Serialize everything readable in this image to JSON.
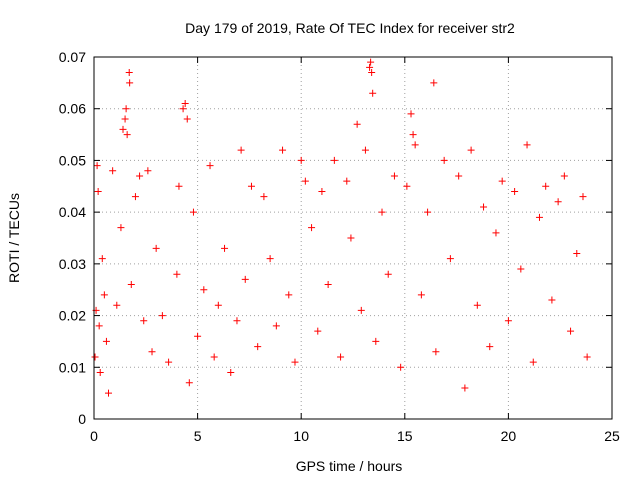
{
  "chart_data": {
    "type": "scatter",
    "title": "Day 179 of 2019, Rate Of TEC Index for receiver str2",
    "xlabel": "GPS time / hours",
    "ylabel": "ROTI / TECUs",
    "xlim": [
      0,
      25
    ],
    "ylim": [
      0,
      0.07
    ],
    "xticks": [
      0,
      5,
      10,
      15,
      20,
      25
    ],
    "xtick_labels": [
      "0",
      "5",
      "10",
      "15",
      "20",
      "25"
    ],
    "yticks": [
      0,
      0.01,
      0.02,
      0.03,
      0.04,
      0.05,
      0.06,
      0.07
    ],
    "ytick_labels": [
      "0",
      "0.01",
      "0.02",
      "0.03",
      "0.04",
      "0.05",
      "0.06",
      "0.07"
    ],
    "grid": true,
    "marker": "+",
    "marker_color": "#ff0000",
    "series": [
      {
        "name": "ROTI",
        "points": [
          [
            0.05,
            0.012
          ],
          [
            0.1,
            0.021
          ],
          [
            0.15,
            0.049
          ],
          [
            0.2,
            0.044
          ],
          [
            0.25,
            0.018
          ],
          [
            0.3,
            0.009
          ],
          [
            0.4,
            0.031
          ],
          [
            0.5,
            0.024
          ],
          [
            0.6,
            0.015
          ],
          [
            0.7,
            0.005
          ],
          [
            0.9,
            0.048
          ],
          [
            1.1,
            0.022
          ],
          [
            1.3,
            0.037
          ],
          [
            1.4,
            0.056
          ],
          [
            1.5,
            0.058
          ],
          [
            1.55,
            0.06
          ],
          [
            1.6,
            0.055
          ],
          [
            1.7,
            0.067
          ],
          [
            1.72,
            0.065
          ],
          [
            1.8,
            0.026
          ],
          [
            2.0,
            0.043
          ],
          [
            2.2,
            0.047
          ],
          [
            2.4,
            0.019
          ],
          [
            2.6,
            0.048
          ],
          [
            2.8,
            0.013
          ],
          [
            3.0,
            0.033
          ],
          [
            3.3,
            0.02
          ],
          [
            3.6,
            0.011
          ],
          [
            4.0,
            0.028
          ],
          [
            4.1,
            0.045
          ],
          [
            4.3,
            0.06
          ],
          [
            4.4,
            0.061
          ],
          [
            4.5,
            0.058
          ],
          [
            4.6,
            0.007
          ],
          [
            4.8,
            0.04
          ],
          [
            5.0,
            0.016
          ],
          [
            5.3,
            0.025
          ],
          [
            5.6,
            0.049
          ],
          [
            5.8,
            0.012
          ],
          [
            6.0,
            0.022
          ],
          [
            6.3,
            0.033
          ],
          [
            6.6,
            0.009
          ],
          [
            6.9,
            0.019
          ],
          [
            7.1,
            0.052
          ],
          [
            7.3,
            0.027
          ],
          [
            7.6,
            0.045
          ],
          [
            7.9,
            0.014
          ],
          [
            8.2,
            0.043
          ],
          [
            8.5,
            0.031
          ],
          [
            8.8,
            0.018
          ],
          [
            9.1,
            0.052
          ],
          [
            9.4,
            0.024
          ],
          [
            9.7,
            0.011
          ],
          [
            10.0,
            0.05
          ],
          [
            10.2,
            0.046
          ],
          [
            10.5,
            0.037
          ],
          [
            10.8,
            0.017
          ],
          [
            11.0,
            0.044
          ],
          [
            11.3,
            0.026
          ],
          [
            11.6,
            0.05
          ],
          [
            11.9,
            0.012
          ],
          [
            12.2,
            0.046
          ],
          [
            12.4,
            0.035
          ],
          [
            12.7,
            0.057
          ],
          [
            12.9,
            0.021
          ],
          [
            13.1,
            0.052
          ],
          [
            13.3,
            0.068
          ],
          [
            13.35,
            0.069
          ],
          [
            13.4,
            0.067
          ],
          [
            13.45,
            0.063
          ],
          [
            13.6,
            0.015
          ],
          [
            13.9,
            0.04
          ],
          [
            14.2,
            0.028
          ],
          [
            14.5,
            0.047
          ],
          [
            14.8,
            0.01
          ],
          [
            15.1,
            0.045
          ],
          [
            15.3,
            0.059
          ],
          [
            15.4,
            0.055
          ],
          [
            15.5,
            0.053
          ],
          [
            15.8,
            0.024
          ],
          [
            16.1,
            0.04
          ],
          [
            16.4,
            0.065
          ],
          [
            16.5,
            0.013
          ],
          [
            16.9,
            0.05
          ],
          [
            17.2,
            0.031
          ],
          [
            17.6,
            0.047
          ],
          [
            17.9,
            0.006
          ],
          [
            18.2,
            0.052
          ],
          [
            18.5,
            0.022
          ],
          [
            18.8,
            0.041
          ],
          [
            19.1,
            0.014
          ],
          [
            19.4,
            0.036
          ],
          [
            19.7,
            0.046
          ],
          [
            20.0,
            0.019
          ],
          [
            20.3,
            0.044
          ],
          [
            20.6,
            0.029
          ],
          [
            20.9,
            0.053
          ],
          [
            21.2,
            0.011
          ],
          [
            21.5,
            0.039
          ],
          [
            21.8,
            0.045
          ],
          [
            22.1,
            0.023
          ],
          [
            22.4,
            0.042
          ],
          [
            22.7,
            0.047
          ],
          [
            23.0,
            0.017
          ],
          [
            23.3,
            0.032
          ],
          [
            23.6,
            0.043
          ],
          [
            23.8,
            0.012
          ]
        ]
      }
    ]
  }
}
